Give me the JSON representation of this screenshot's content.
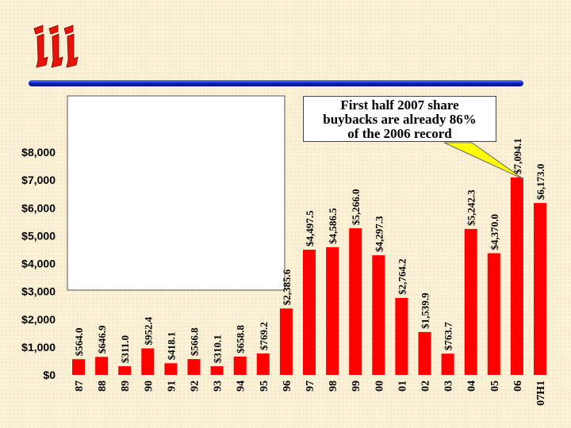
{
  "logo": {
    "label": "iii"
  },
  "accent_color": "#FF0000",
  "rule_color": "#0A22C8",
  "callout": {
    "lines": [
      "First half 2007 share",
      "buybacks are already 86%",
      "of the 2006 record"
    ],
    "fill": "#FFFF00"
  },
  "chart_data": {
    "type": "bar",
    "title": "",
    "xlabel": "",
    "ylabel": "",
    "ylim": [
      0,
      8000
    ],
    "yticks": [
      0,
      1000,
      2000,
      3000,
      4000,
      5000,
      6000,
      7000,
      8000
    ],
    "ytick_labels": [
      "$0",
      "$1,000",
      "$2,000",
      "$3,000",
      "$4,000",
      "$5,000",
      "$6,000",
      "$7,000",
      "$8,000"
    ],
    "categories": [
      "87",
      "88",
      "89",
      "90",
      "91",
      "92",
      "93",
      "94",
      "95",
      "96",
      "97",
      "98",
      "99",
      "00",
      "01",
      "02",
      "03",
      "04",
      "05",
      "06",
      "07H1"
    ],
    "values": [
      564.0,
      646.9,
      311.0,
      952.4,
      418.1,
      566.8,
      310.1,
      658.8,
      769.2,
      2385.6,
      4497.5,
      4586.5,
      5266.0,
      4297.3,
      2764.2,
      1539.9,
      763.7,
      5242.3,
      4370.0,
      7094.1,
      6173.0
    ],
    "data_labels": [
      "$564.0",
      "$646.9",
      "$311.0",
      "$952.4",
      "$418.1",
      "$566.8",
      "$310.1",
      "$658.8",
      "$769.2",
      "$2,385.6",
      "$4,497.5",
      "$4,586.5",
      "$5,266.0",
      "$4,297.3",
      "$2,764.2",
      "$1,539.9",
      "$763.7",
      "$5,242.3",
      "$4,370.0",
      "$7,094.1",
      "$6,173.0"
    ],
    "bar_color": "#FF0000",
    "grid": false,
    "legend": "none"
  }
}
